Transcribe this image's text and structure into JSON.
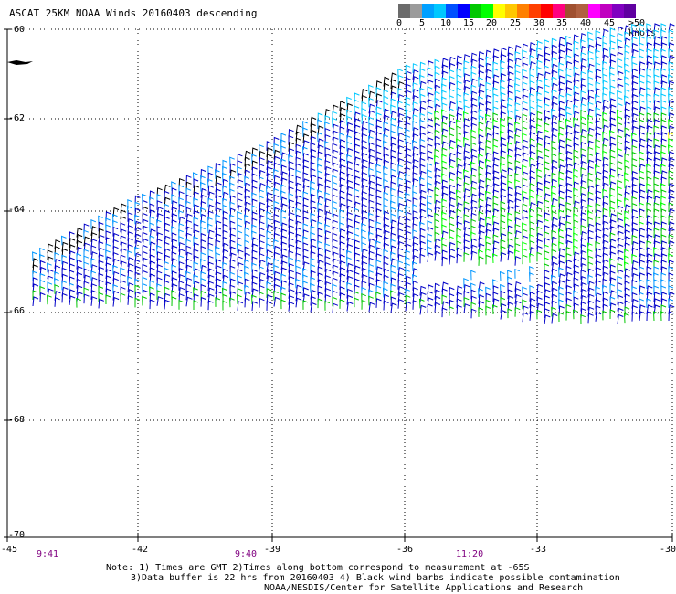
{
  "title": "ASCAT 25KM NOAA Winds 20160403 descending",
  "colorbar": {
    "segments": [
      "#6b6b6b",
      "#9b9b9b",
      "#00a0ff",
      "#00c8ff",
      "#0050ff",
      "#0000ff",
      "#00c800",
      "#00ff00",
      "#ffff00",
      "#ffc800",
      "#ff8000",
      "#ff4000",
      "#ff0000",
      "#ff0080",
      "#a05030",
      "#b06040",
      "#ff00ff",
      "#c000c0",
      "#8000c0",
      "#6000a0"
    ],
    "labels": [
      "0",
      "5",
      "10",
      "15",
      "20",
      "25",
      "30",
      "35",
      "40",
      "45",
      ">50 knots"
    ]
  },
  "y_axis": [
    "-60",
    "-62",
    "-64",
    "-66",
    "-68",
    "-70"
  ],
  "x_axis": [
    "-45",
    "-42",
    "-39",
    "-36",
    "-33",
    "-30"
  ],
  "times": [
    "9:41",
    "9:40",
    "11:20"
  ],
  "notes": {
    "line1": "Note: 1) Times are GMT 2)Times along bottom correspond to measurement at -65S",
    "line2": "3)Data buffer is 22 hrs from 20160403 4) Black wind barbs indicate possible contamination",
    "line3": "NOAA/NESDIS/Center for Satellite Applications and Research"
  },
  "map_data": {
    "lat_range": [
      -70,
      -60
    ],
    "lon_range": [
      -45,
      -30
    ],
    "barb_colors": [
      "#000000",
      "#00c8ff",
      "#0096ff",
      "#0000c8",
      "#00c800",
      "#00ff00",
      "#ffff00"
    ]
  }
}
